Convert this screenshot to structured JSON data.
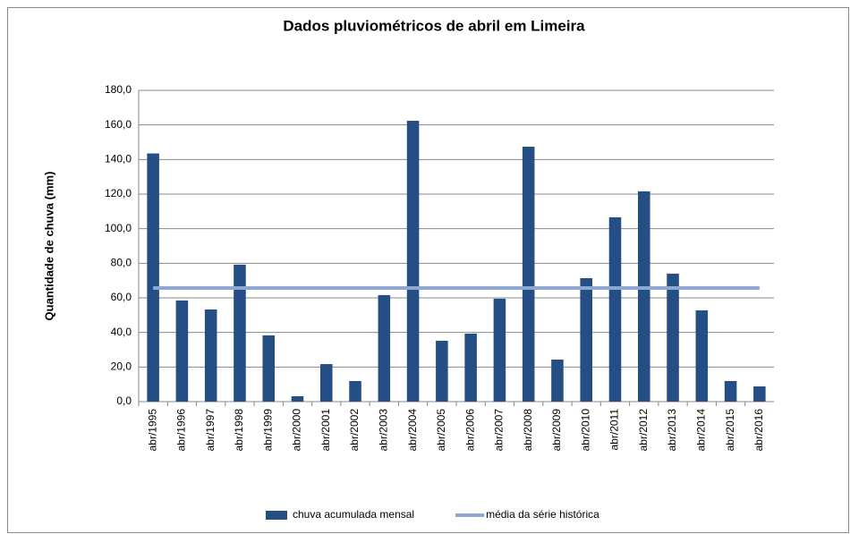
{
  "chart_data": {
    "type": "bar",
    "title": "Dados pluviométricos de abril em Limeira",
    "y_label": "Quantidade de chuva (mm)",
    "categories": [
      "abr/1995",
      "abr/1996",
      "abr/1997",
      "abr/1998",
      "abr/1999",
      "abr/2000",
      "abr/2001",
      "abr/2002",
      "abr/2003",
      "abr/2004",
      "abr/2005",
      "abr/2006",
      "abr/2007",
      "abr/2008",
      "abr/2009",
      "abr/2010",
      "abr/2011",
      "abr/2012",
      "abr/2013",
      "abr/2014",
      "abr/2015",
      "abr/2016"
    ],
    "series": [
      {
        "name": "chuva acumulada mensal",
        "type": "bar",
        "color": "#254f84",
        "values": [
          143.5,
          58.5,
          53.3,
          79.2,
          38.3,
          3.1,
          21.7,
          11.9,
          61.6,
          162.4,
          35.2,
          39.3,
          59.5,
          147.4,
          24.3,
          71.4,
          106.6,
          121.6,
          74.0,
          52.8,
          11.9,
          8.8
        ]
      },
      {
        "name": "média da série histórica",
        "type": "line",
        "color": "#8ea8d2",
        "values": [
          65.7,
          65.7,
          65.7,
          65.7,
          65.7,
          65.7,
          65.7,
          65.7,
          65.7,
          65.7,
          65.7,
          65.7,
          65.7,
          65.7,
          65.7,
          65.7,
          65.7,
          65.7,
          65.7,
          65.7,
          65.7,
          65.7
        ]
      }
    ],
    "ylim": [
      0,
      180
    ],
    "yticks": [
      {
        "value": 0,
        "label": "0,0"
      },
      {
        "value": 20,
        "label": "20,0"
      },
      {
        "value": 40,
        "label": "40,0"
      },
      {
        "value": 60,
        "label": "60,0"
      },
      {
        "value": 80,
        "label": "80,0"
      },
      {
        "value": 100,
        "label": "100,0"
      },
      {
        "value": 120,
        "label": "120,0"
      },
      {
        "value": 140,
        "label": "140,0"
      },
      {
        "value": 160,
        "label": "160,0"
      },
      {
        "value": 180,
        "label": "180,0"
      }
    ],
    "grid": true,
    "legend": "bottom"
  }
}
